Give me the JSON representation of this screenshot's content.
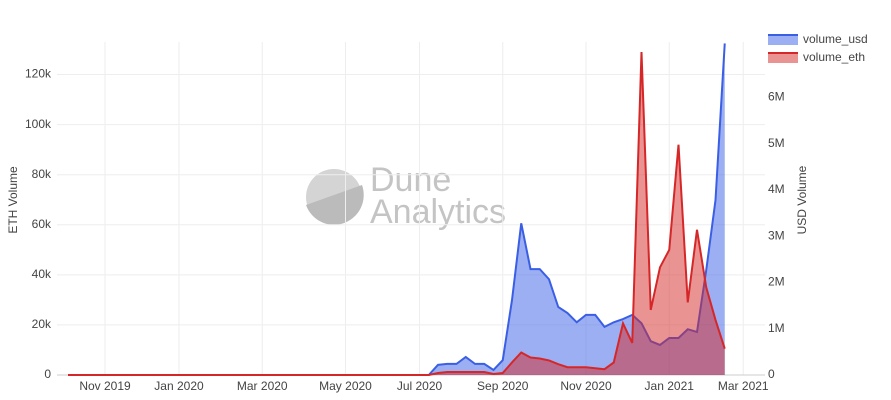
{
  "chart_data": {
    "type": "area",
    "annotations": [
      "Dune",
      "Analytics"
    ],
    "y_label": "ETH Volume",
    "y2_label": "USD Volume",
    "categories": [
      null,
      null,
      null,
      null,
      "Nov 2019",
      null,
      null,
      null,
      null,
      null,
      null,
      null,
      "Jan 2020",
      null,
      null,
      null,
      null,
      null,
      null,
      null,
      null,
      "Mar 2020",
      null,
      null,
      null,
      null,
      null,
      null,
      null,
      null,
      "May 2020",
      null,
      null,
      null,
      null,
      null,
      null,
      null,
      "Jul 2020",
      null,
      null,
      null,
      null,
      null,
      null,
      null,
      null,
      "Sep 2020",
      null,
      null,
      null,
      null,
      null,
      null,
      null,
      null,
      "Nov 2020",
      null,
      null,
      null,
      null,
      null,
      null,
      null,
      null,
      "Jan 2021",
      null,
      null,
      null,
      null,
      null,
      null,
      null,
      "Mar 2021"
    ],
    "series": [
      {
        "name": "volume_usd",
        "color": "#3a5fe5",
        "axis": "y2",
        "values": [
          0,
          0,
          0,
          0,
          0,
          0,
          0,
          0,
          0,
          0,
          0,
          0,
          0,
          0,
          0,
          0,
          0,
          0,
          0,
          0,
          0,
          0,
          0,
          0,
          0,
          0,
          0,
          0,
          0,
          0,
          0,
          0,
          0,
          0,
          0,
          0,
          0,
          0,
          0,
          0,
          220000,
          240000,
          240000,
          390000,
          240000,
          240000,
          110000,
          320000,
          1620000,
          3280000,
          2290000,
          2290000,
          2070000,
          1470000,
          1340000,
          1140000,
          1300000,
          1300000,
          1040000,
          1140000,
          1210000,
          1300000,
          1120000,
          730000,
          650000,
          800000,
          800000,
          990000,
          930000,
          2270000,
          3780000,
          7170000,
          null,
          null
        ]
      },
      {
        "name": "volume_eth",
        "color": "#d62728",
        "values": [
          0,
          0,
          0,
          0,
          0,
          0,
          0,
          0,
          0,
          0,
          0,
          0,
          0,
          0,
          0,
          0,
          0,
          0,
          0,
          0,
          0,
          0,
          0,
          0,
          0,
          0,
          0,
          0,
          0,
          0,
          0,
          0,
          0,
          0,
          0,
          0,
          0,
          0,
          0,
          0,
          800,
          1200,
          1200,
          1200,
          1200,
          1200,
          400,
          800,
          5000,
          9000,
          7000,
          6600,
          5800,
          4300,
          3100,
          3100,
          3100,
          2700,
          2300,
          5000,
          20600,
          12800,
          129000,
          26000,
          43000,
          50000,
          92000,
          29000,
          58000,
          35000,
          22000,
          10500,
          null,
          null
        ]
      }
    ],
    "ylim": [
      0,
      133000
    ],
    "yticks": [
      0,
      {
        "value": 20000,
        "label": "20k"
      },
      {
        "value": 40000,
        "label": "40k"
      },
      {
        "value": 60000,
        "label": "60k"
      },
      {
        "value": 80000,
        "label": "80k"
      },
      {
        "value": 100000,
        "label": "100k"
      },
      {
        "value": 120000,
        "label": "120k"
      }
    ],
    "y2lim": [
      0,
      7200000
    ],
    "y2ticks": [
      0,
      {
        "value": 1000000,
        "label": "1M"
      },
      {
        "value": 2000000,
        "label": "2M"
      },
      {
        "value": 3000000,
        "label": "3M"
      },
      {
        "value": 4000000,
        "label": "4M"
      },
      {
        "value": 5000000,
        "label": "5M"
      },
      {
        "value": 6000000,
        "label": "6M"
      }
    ],
    "grid": true
  }
}
